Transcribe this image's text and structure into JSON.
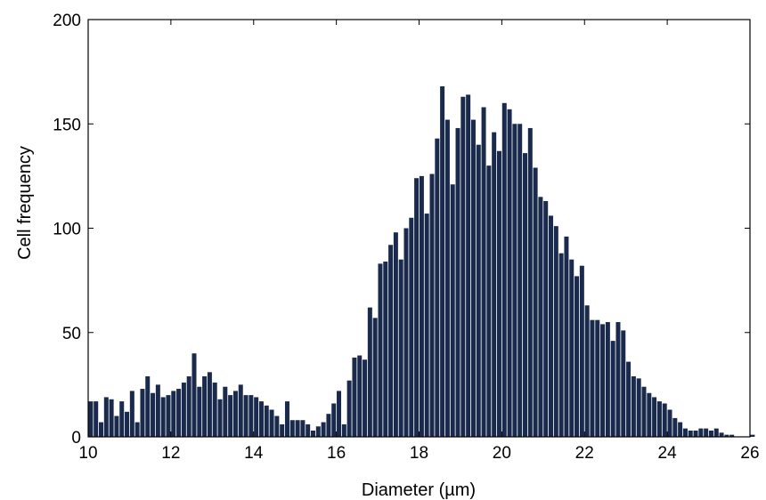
{
  "chart_data": {
    "type": "bar",
    "title": "",
    "xlabel": "Diameter (µm)",
    "ylabel": "Cell frequency",
    "xlim": [
      10,
      26
    ],
    "ylim": [
      0,
      200
    ],
    "xticks": [
      10,
      12,
      14,
      16,
      18,
      20,
      22,
      24,
      26
    ],
    "yticks": [
      0,
      50,
      100,
      150,
      200
    ],
    "grid": false,
    "bar_color": "#1a2a4d",
    "bin_start": 10,
    "bin_width": 0.125,
    "values": [
      17,
      17,
      7,
      19,
      18,
      10,
      17,
      12,
      22,
      7,
      23,
      29,
      21,
      25,
      19,
      20,
      22,
      23,
      26,
      29,
      40,
      24,
      29,
      31,
      26,
      18,
      24,
      20,
      22,
      25,
      20,
      20,
      19,
      17,
      15,
      13,
      10,
      6,
      17,
      8,
      8,
      8,
      6,
      3,
      5,
      7,
      11,
      16,
      22,
      6,
      27,
      38,
      39,
      37,
      62,
      57,
      83,
      84,
      92,
      98,
      85,
      100,
      105,
      124,
      125,
      107,
      126,
      143,
      168,
      152,
      121,
      148,
      163,
      164,
      152,
      140,
      158,
      130,
      146,
      137,
      160,
      157,
      150,
      150,
      136,
      148,
      129,
      115,
      113,
      106,
      101,
      88,
      96,
      85,
      77,
      82,
      63,
      56,
      56,
      54,
      55,
      46,
      55,
      51,
      36,
      29,
      28,
      24,
      21,
      19,
      17,
      16,
      13,
      9,
      7,
      4,
      3,
      3,
      4,
      4,
      3,
      4,
      2,
      1,
      1,
      0,
      0,
      0,
      1,
      0
    ]
  }
}
